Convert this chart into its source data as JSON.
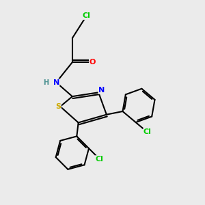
{
  "bg_color": "#ebebeb",
  "bond_color": "#000000",
  "atom_colors": {
    "Cl": "#00cc00",
    "O": "#ff0000",
    "N": "#0000ff",
    "S": "#ccaa00",
    "C": "#000000",
    "H": "#4a9090"
  },
  "lw": 1.5,
  "fontsize": 8
}
